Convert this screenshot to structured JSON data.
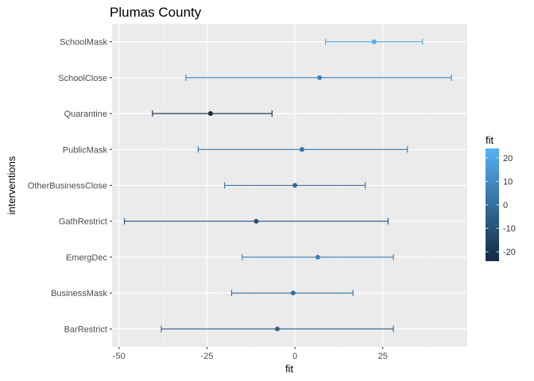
{
  "chart_data": {
    "type": "errorbar",
    "title": "Plumas County",
    "xlabel": "fit",
    "ylabel": "interventions",
    "xlim": [
      -52,
      49
    ],
    "x_ticks": [
      -50,
      -25,
      0,
      25
    ],
    "x_tick_labels": [
      "-50",
      "-25",
      "0",
      "25"
    ],
    "categories": [
      "SchoolMask",
      "SchoolClose",
      "Quarantine",
      "PublicMask",
      "OtherBusinessClose",
      "GathRestrict",
      "EmergDec",
      "BusinessMask",
      "BarRestrict"
    ],
    "series": [
      {
        "fit": [
          22.5,
          7.0,
          -24.0,
          2.0,
          0.0,
          -11.0,
          6.5,
          -0.5,
          -5.0
        ],
        "lower": [
          8.7,
          -31.0,
          -40.5,
          -27.5,
          -20.0,
          -48.5,
          -15.0,
          -18.0,
          -38.0
        ],
        "upper": [
          36.3,
          44.5,
          -6.5,
          32.0,
          20.0,
          26.5,
          28.0,
          16.5,
          28.0
        ]
      }
    ],
    "legend": {
      "title": "fit",
      "position": "right",
      "min": -24,
      "max": 24,
      "ticks": [
        20,
        10,
        0,
        -10,
        -20
      ],
      "tick_labels": [
        "20",
        "10",
        "0",
        "-10",
        "-20"
      ],
      "color_low": "#132b43",
      "color_high": "#56b1f7"
    },
    "grid": true,
    "panel_background": "#ebebeb"
  }
}
